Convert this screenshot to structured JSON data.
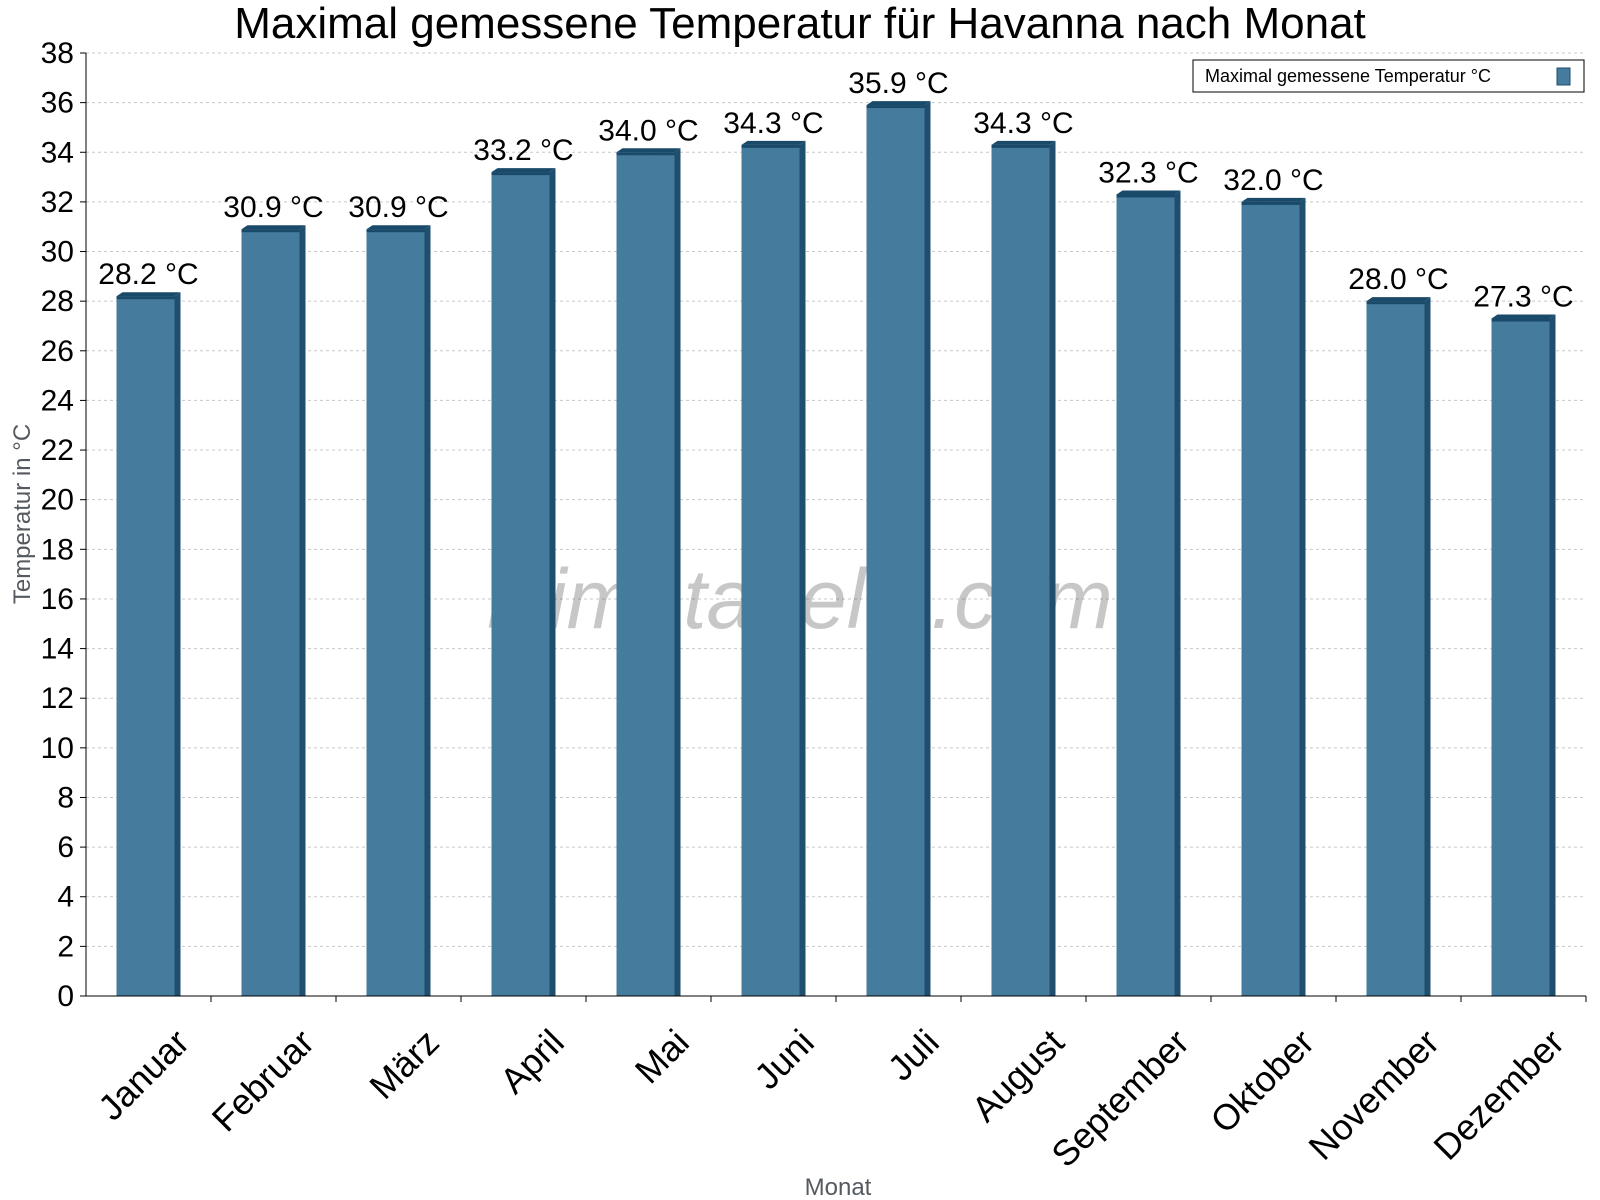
{
  "watermark": "klimatabelle.com",
  "legend_label": "Maximal gemessene Temperatur °C",
  "colors": {
    "bar": "#457b9d",
    "bar_side": "#1f4e6e",
    "bar_top": "#1a4a69",
    "grid": "#c8c8c8"
  },
  "chart_data": {
    "type": "bar",
    "title": "Maximal gemessene Temperatur für Havanna nach Monat",
    "xlabel": "Monat",
    "ylabel": "Temperatur in °C",
    "ylim": [
      0,
      38
    ],
    "yticks": [
      "0",
      "2",
      "4",
      "6",
      "8",
      "10",
      "12",
      "14",
      "16",
      "18",
      "20",
      "22",
      "24",
      "26",
      "28",
      "30",
      "32",
      "34",
      "36",
      "38"
    ],
    "grid": true,
    "legend_position": "top-right",
    "categories": [
      "Januar",
      "Februar",
      "März",
      "April",
      "Mai",
      "Juni",
      "Juli",
      "August",
      "September",
      "Oktober",
      "November",
      "Dezember"
    ],
    "series": [
      {
        "name": "Maximal gemessene Temperatur °C",
        "values": [
          28.2,
          30.9,
          30.9,
          33.2,
          34.0,
          34.3,
          35.9,
          34.3,
          32.3,
          32.0,
          28.0,
          27.3
        ],
        "labels": [
          "28.2 °C",
          "30.9 °C",
          "30.9 °C",
          "33.2 °C",
          "34.0 °C",
          "34.3 °C",
          "35.9 °C",
          "34.3 °C",
          "32.3 °C",
          "32.0 °C",
          "28.0 °C",
          "27.3 °C"
        ]
      }
    ]
  }
}
